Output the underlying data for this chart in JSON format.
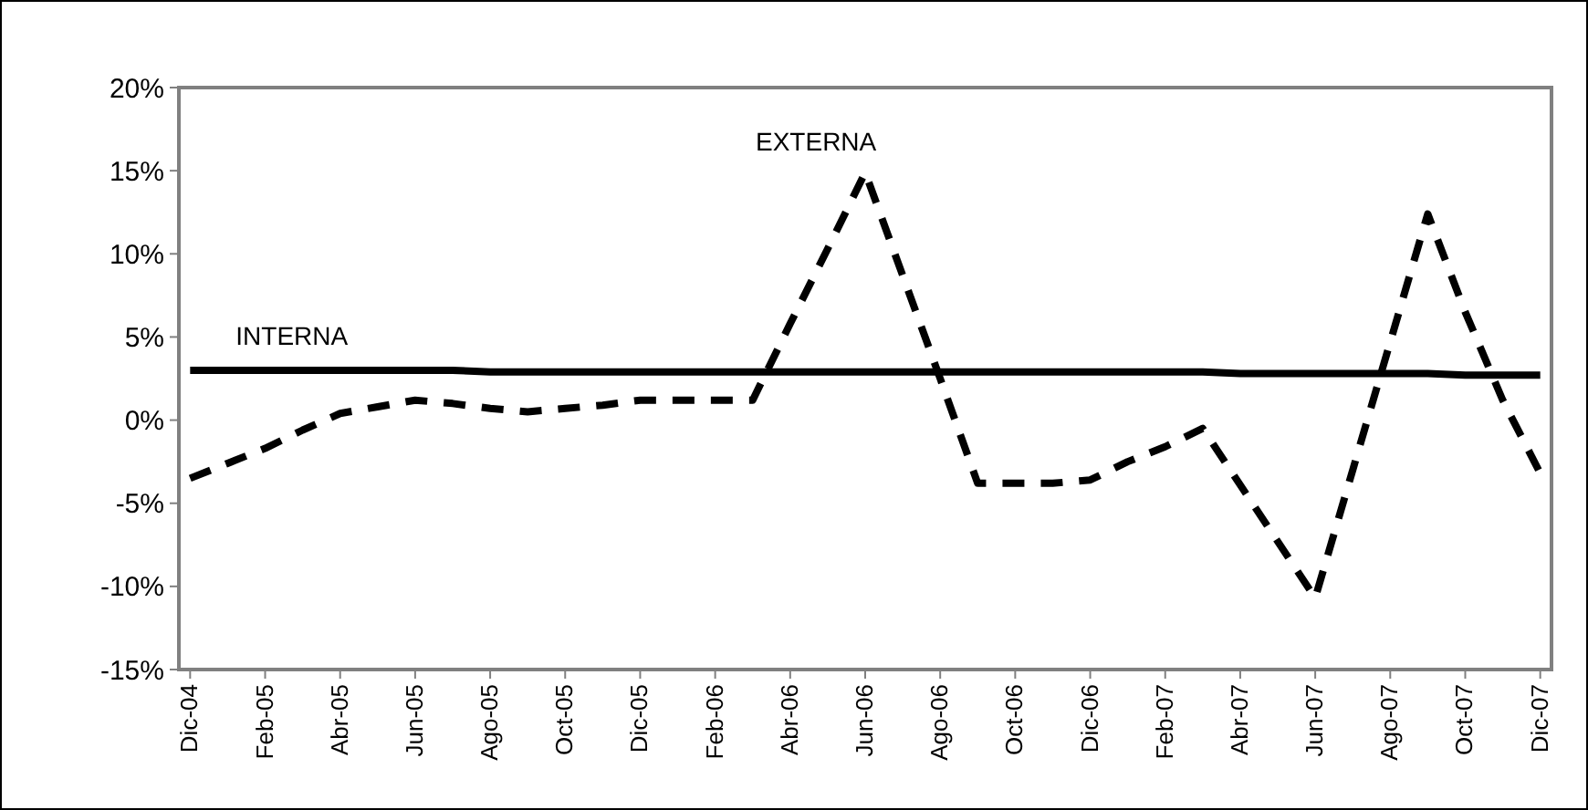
{
  "chart_data": {
    "type": "line",
    "categories": [
      "Dic-04",
      null,
      "Feb-05",
      null,
      "Abr-05",
      null,
      "Jun-05",
      null,
      "Ago-05",
      null,
      "Oct-05",
      null,
      "Dic-05",
      null,
      "Feb-06",
      null,
      "Abr-06",
      null,
      "Jun-06",
      null,
      "Ago-06",
      null,
      "Oct-06",
      null,
      "Dic-06",
      null,
      "Feb-07",
      null,
      "Abr-07",
      null,
      "Jun-07",
      null,
      "Ago-07",
      null,
      "Oct-07",
      null,
      "Dic-07"
    ],
    "ylim": [
      -15,
      20
    ],
    "yticks": [
      {
        "value": -15,
        "label": "-15%"
      },
      {
        "value": -10,
        "label": "-10%"
      },
      {
        "value": -5,
        "label": "-5%"
      },
      {
        "value": 0,
        "label": "0%"
      },
      {
        "value": 5,
        "label": "5%"
      },
      {
        "value": 10,
        "label": "10%"
      },
      {
        "value": 15,
        "label": "15%"
      },
      {
        "value": 20,
        "label": "20%"
      }
    ],
    "grid": false,
    "marker": "none",
    "series": [
      {
        "name": "INTERNA",
        "color": "#000000",
        "line_style": "solid",
        "values": [
          3.0,
          3.0,
          3.0,
          3.0,
          3.0,
          3.0,
          3.0,
          3.0,
          2.9,
          2.9,
          2.9,
          2.9,
          2.9,
          2.9,
          2.9,
          2.9,
          2.9,
          2.9,
          2.9,
          2.9,
          2.9,
          2.9,
          2.9,
          2.9,
          2.9,
          2.9,
          2.9,
          2.9,
          2.8,
          2.8,
          2.8,
          2.8,
          2.8,
          2.8,
          2.7,
          2.7,
          2.7
        ]
      },
      {
        "name": "EXTERNA",
        "color": "#000000",
        "line_style": "dashed",
        "values": [
          -3.5,
          -2.6,
          -1.7,
          -0.6,
          0.4,
          0.8,
          1.2,
          1.0,
          0.7,
          0.5,
          0.7,
          0.9,
          1.2,
          1.2,
          1.2,
          1.2,
          5.8,
          10.3,
          14.9,
          8.7,
          2.5,
          -3.8,
          -3.8,
          -3.8,
          -3.6,
          -2.5,
          -1.6,
          -0.5,
          -3.9,
          -7.3,
          -10.7,
          -3.0,
          4.7,
          12.4,
          6.5,
          1.2,
          -3.2
        ]
      }
    ]
  }
}
